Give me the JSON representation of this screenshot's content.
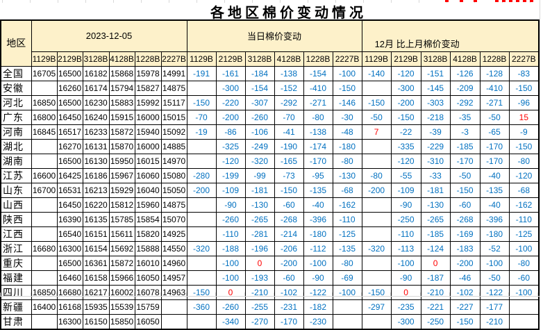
{
  "colors": {
    "header_bg": "#FDF1CA",
    "change_blue": "#0070C0",
    "highlight_red": "#FF0000",
    "gridline": "#D8D8D8",
    "border": "#000000"
  },
  "chart_data": {
    "type": "table",
    "title": "各地区棉价变动情况",
    "region_header": "地区",
    "groups": [
      {
        "key": "price",
        "label": "2023-12-05",
        "columns": [
          "1129B",
          "2129B",
          "3128B",
          "4128B",
          "1228B",
          "2227B"
        ]
      },
      {
        "key": "daily",
        "label": "当日棉价变动",
        "columns": [
          "1129B",
          "2129B",
          "3128B",
          "4128B",
          "1228B",
          "2227B"
        ]
      },
      {
        "key": "monthly",
        "label": "12月 比上月棉价变动",
        "columns": [
          "1129B",
          "2129B",
          "3128B",
          "4128B",
          "1228B",
          "2227B"
        ]
      }
    ],
    "rows": [
      {
        "region": "全国",
        "price": [
          "16705",
          "16500",
          "16182",
          "15868",
          "15978",
          "14991"
        ],
        "daily": [
          "-191",
          "-161",
          "-184",
          "-138",
          "-154",
          "-100"
        ],
        "monthly": [
          "-140",
          "-120",
          "-151",
          "-126",
          "-128",
          "-83"
        ]
      },
      {
        "region": "安徽",
        "price": [
          "",
          "16260",
          "16174",
          "15794",
          "15827",
          "14875"
        ],
        "daily": [
          "",
          "-300",
          "-154",
          "-152",
          "-410",
          "-150"
        ],
        "monthly": [
          "",
          "-300",
          "-145",
          "-209",
          "-410",
          "-150"
        ]
      },
      {
        "region": "河北",
        "price": [
          "16850",
          "16500",
          "16230",
          "15883",
          "15992",
          "15117"
        ],
        "daily": [
          "-150",
          "-220",
          "-307",
          "-292",
          "-271",
          "-146"
        ],
        "monthly": [
          "-150",
          "-200",
          "-303",
          "-292",
          "-271",
          "-96"
        ]
      },
      {
        "region": "广东",
        "price": [
          "16800",
          "16450",
          "16240",
          "15915",
          "16000",
          "15015"
        ],
        "daily": [
          "-70",
          "-200",
          "-260",
          "-70",
          "-80",
          "-30"
        ],
        "monthly": [
          "-50",
          "-150",
          "-218",
          "-35",
          "-50",
          "15"
        ]
      },
      {
        "region": "河南",
        "price": [
          "16845",
          "16517",
          "16233",
          "15872",
          "15940",
          "15092"
        ],
        "daily": [
          "-19",
          "-86",
          "-106",
          "-41",
          "-138",
          "-48"
        ],
        "monthly": [
          "7",
          "-22",
          "-39",
          "-3",
          "-65",
          "-9"
        ]
      },
      {
        "region": "湖北",
        "price": [
          "",
          "16270",
          "16131",
          "15870",
          "16000",
          "14885"
        ],
        "daily": [
          "",
          "-325",
          "-249",
          "-190",
          "-174",
          "-180"
        ],
        "monthly": [
          "",
          "-335",
          "-229",
          "-185",
          "-170",
          "-150"
        ]
      },
      {
        "region": "湖南",
        "price": [
          "",
          "16500",
          "16130",
          "15950",
          "16015",
          "14970"
        ],
        "daily": [
          "",
          "-120",
          "-320",
          "-165",
          "-170",
          "-80"
        ],
        "monthly": [
          "",
          "-120",
          "-310",
          "-170",
          "-170",
          "-80"
        ]
      },
      {
        "region": "江苏",
        "price": [
          "16600",
          "16425",
          "16186",
          "15967",
          "16060",
          "15080"
        ],
        "daily": [
          "-280",
          "-199",
          "-99",
          "-73",
          "-95",
          "-130"
        ],
        "monthly": [
          "-80",
          "-55",
          "-33",
          "-50",
          "-40",
          "-120"
        ]
      },
      {
        "region": "山东",
        "price": [
          "16700",
          "16531",
          "16213",
          "15929",
          "16040",
          "15050"
        ],
        "daily": [
          "-200",
          "-109",
          "-181",
          "-150",
          "-135",
          "-68"
        ],
        "monthly": [
          "-200",
          "-109",
          "-181",
          "-150",
          "-135",
          "-68"
        ]
      },
      {
        "region": "山西",
        "price": [
          "",
          "16450",
          "16220",
          "15812",
          "15960",
          "14875"
        ],
        "daily": [
          "",
          "-90",
          "-130",
          "-60",
          "-40",
          "-162"
        ],
        "monthly": [
          "",
          "-90",
          "-130",
          "-60",
          "-40",
          "-162"
        ]
      },
      {
        "region": "陕西",
        "price": [
          "",
          "16390",
          "16135",
          "15785",
          "15854",
          "15070"
        ],
        "daily": [
          "",
          "-260",
          "-265",
          "-268",
          "-396",
          "-110"
        ],
        "monthly": [
          "",
          "-250",
          "-265",
          "-268",
          "-396",
          "-110"
        ]
      },
      {
        "region": "江西",
        "price": [
          "",
          "16540",
          "16151",
          "15611",
          "15820",
          "14925"
        ],
        "daily": [
          "",
          "-110",
          "-281",
          "-214",
          "-180",
          "-125"
        ],
        "monthly": [
          "",
          "-110",
          "-185",
          "-169",
          "-180",
          "-125"
        ]
      },
      {
        "region": "浙江",
        "price": [
          "16680",
          "16300",
          "16154",
          "15692",
          "15888",
          "14550"
        ],
        "daily": [
          "-320",
          "-188",
          "-196",
          "-206",
          "-112",
          "-135"
        ],
        "monthly": [
          "-320",
          "-113",
          "-124",
          "-183",
          "-52",
          "-100"
        ]
      },
      {
        "region": "重庆",
        "price": [
          "",
          "16500",
          "16361",
          "15872",
          "16010",
          "14960"
        ],
        "daily": [
          "",
          "-100",
          "0",
          "-200",
          "-100",
          "-80"
        ],
        "monthly": [
          "",
          "-100",
          "0",
          "-200",
          "-100",
          "-80"
        ]
      },
      {
        "region": "福建",
        "price": [
          "",
          "16460",
          "16158",
          "15966",
          "16050",
          "14957"
        ],
        "daily": [
          "",
          "-100",
          "-193",
          "-60",
          "-90",
          "-69"
        ],
        "monthly": [
          "",
          "-90",
          "-187",
          "-46",
          "-50",
          "-60"
        ]
      },
      {
        "region": "四川",
        "price": [
          "16850",
          "16680",
          "16217",
          "16002",
          "16078",
          "14963"
        ],
        "daily": [
          "-150",
          "0",
          "-210",
          "-102",
          "-122",
          "-100"
        ],
        "monthly": [
          "-150",
          "0",
          "-210",
          "-102",
          "-122",
          "-100"
        ]
      },
      {
        "region": "新疆",
        "price": [
          "16400",
          "16168",
          "15935",
          "15539",
          "15759",
          ""
        ],
        "daily": [
          "-360",
          "-260",
          "-255",
          "-231",
          "-182",
          ""
        ],
        "monthly": [
          "-297",
          "-235",
          "-221",
          "-227",
          "-177",
          ""
        ]
      },
      {
        "region": "甘肃",
        "price": [
          "",
          "16300",
          "16150",
          "15850",
          "16050",
          ""
        ],
        "daily": [
          "",
          "-340",
          "-270",
          "-170",
          "-230",
          ""
        ],
        "monthly": [
          "",
          "-300",
          "-250",
          "-150",
          "-210",
          ""
        ]
      }
    ],
    "red_cells": [
      {
        "row": 3,
        "group": "monthly",
        "col": 5
      },
      {
        "row": 4,
        "group": "monthly",
        "col": 0
      },
      {
        "row": 13,
        "group": "daily",
        "col": 2
      },
      {
        "row": 13,
        "group": "monthly",
        "col": 2
      },
      {
        "row": 15,
        "group": "daily",
        "col": 1
      },
      {
        "row": 15,
        "group": "monthly",
        "col": 1
      }
    ]
  }
}
